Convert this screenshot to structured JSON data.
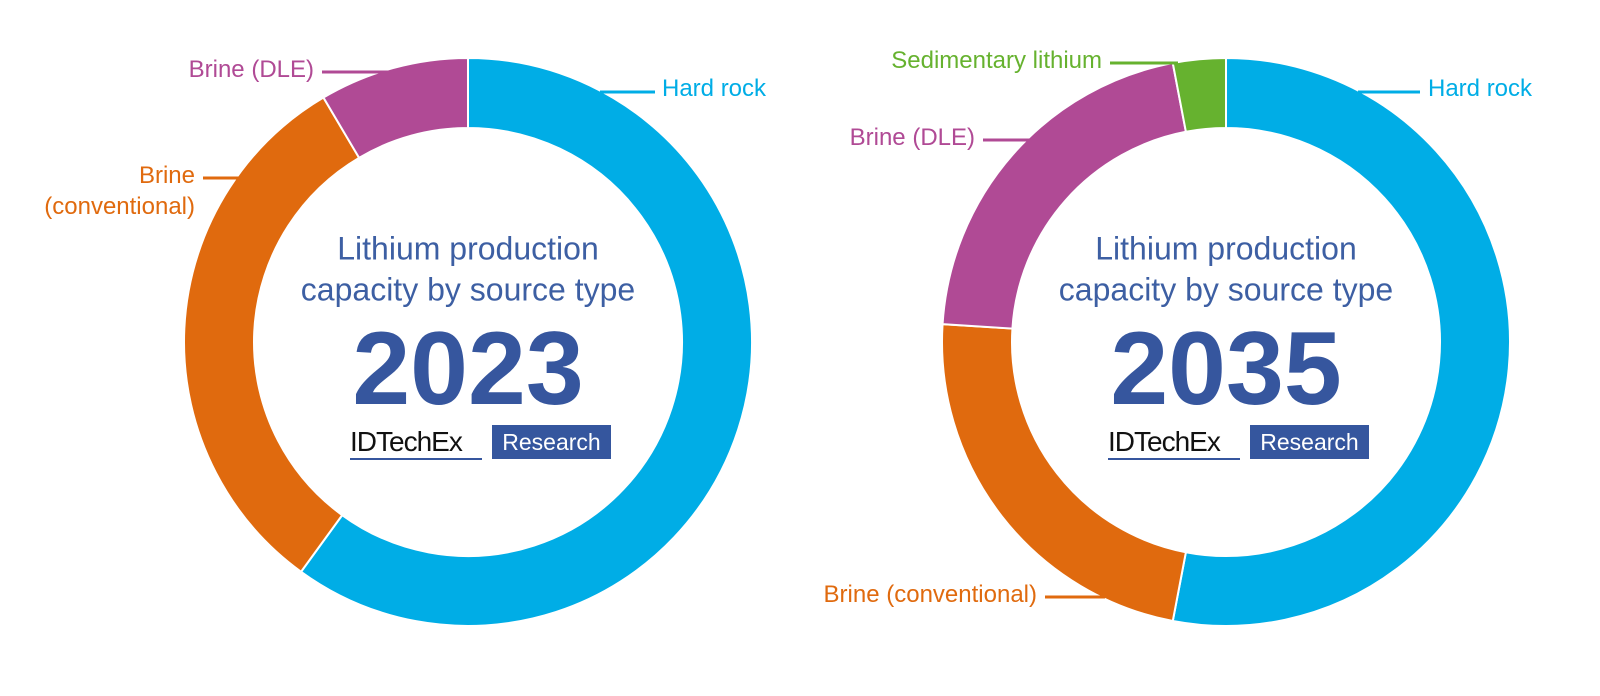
{
  "colors": {
    "hard_rock": "#00ade6",
    "brine_conventional": "#e06a0e",
    "brine_dle": "#b04a95",
    "sedimentary_lithium": "#66b22f",
    "title_text": "#3d5fa3",
    "year_text": "#36569e",
    "brand_box": "#35569e"
  },
  "brand": {
    "name": "IDTechEx",
    "box_text": "Research"
  },
  "chart_data": [
    {
      "type": "pie",
      "variant": "donut",
      "title_lines": [
        "Lithium production",
        "capacity by source type"
      ],
      "year": "2023",
      "slices": [
        {
          "label": "Hard rock",
          "value": 60.0,
          "color_key": "hard_rock",
          "label_lines": [
            "Hard rock"
          ]
        },
        {
          "label": "Brine (conventional)",
          "value": 31.5,
          "color_key": "brine_conventional",
          "label_lines": [
            "Brine",
            "(conventional)"
          ]
        },
        {
          "label": "Brine (DLE)",
          "value": 8.5,
          "color_key": "brine_dle",
          "label_lines": [
            "Brine (DLE)"
          ]
        }
      ]
    },
    {
      "type": "pie",
      "variant": "donut",
      "title_lines": [
        "Lithium production",
        "capacity by source type"
      ],
      "year": "2035",
      "slices": [
        {
          "label": "Hard rock",
          "value": 53.0,
          "color_key": "hard_rock",
          "label_lines": [
            "Hard rock"
          ]
        },
        {
          "label": "Brine (conventional)",
          "value": 23.0,
          "color_key": "brine_conventional",
          "label_lines": [
            "Brine (conventional)"
          ]
        },
        {
          "label": "Brine (DLE)",
          "value": 21.0,
          "color_key": "brine_dle",
          "label_lines": [
            "Brine (DLE)"
          ]
        },
        {
          "label": "Sedimentary lithium",
          "value": 3.0,
          "color_key": "sedimentary_lithium",
          "label_lines": [
            "Sedimentary lithium"
          ]
        }
      ]
    }
  ]
}
